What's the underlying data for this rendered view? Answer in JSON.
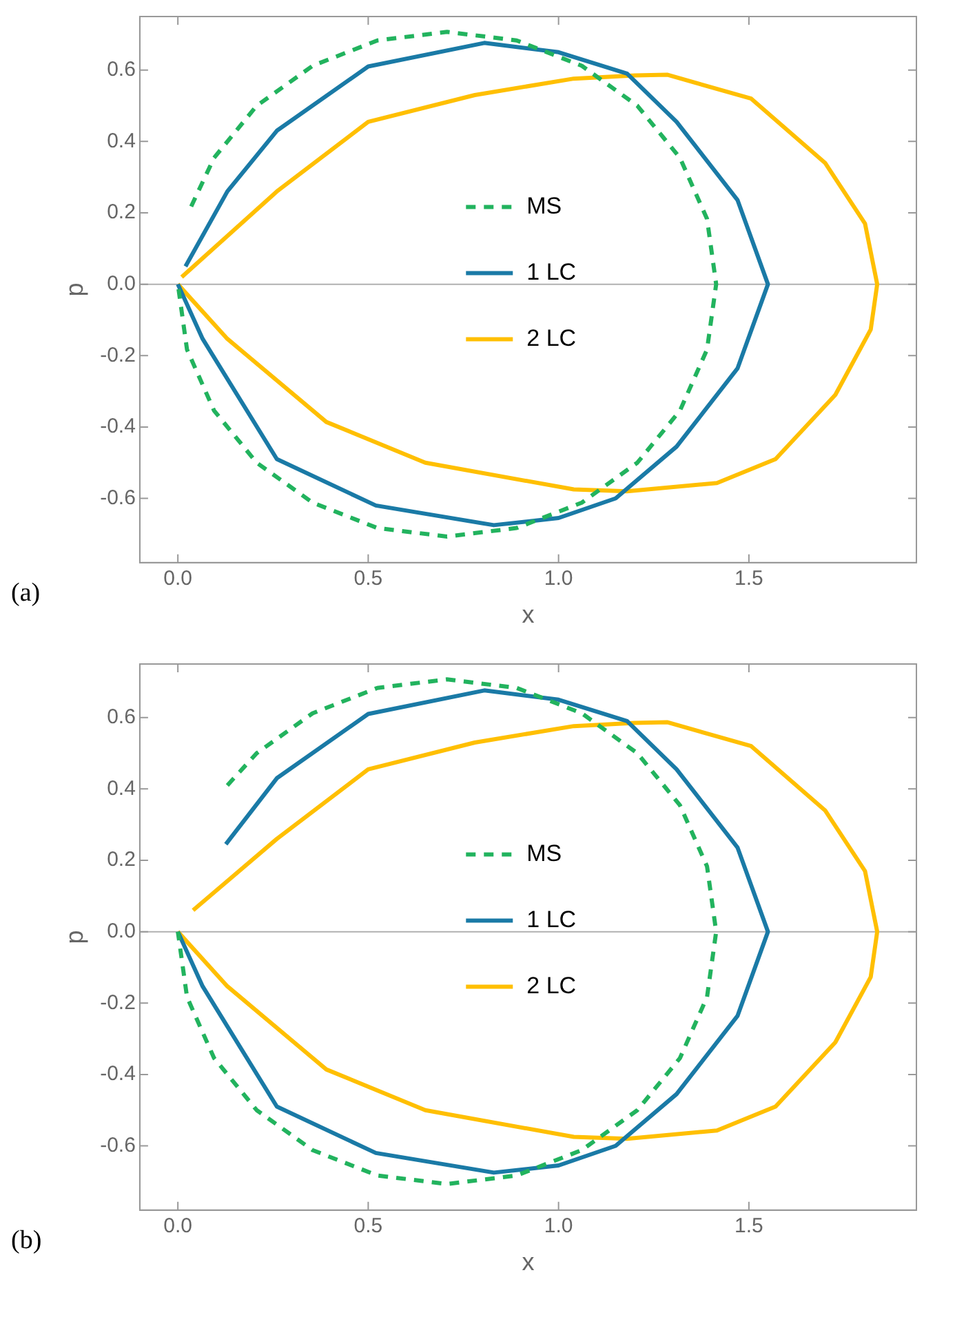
{
  "chart_data": [
    {
      "type": "line",
      "xlabel": "x",
      "ylabel": "p",
      "annotations": [
        "(a)"
      ],
      "legend": "center",
      "grid": false,
      "marker": "none",
      "xlim": [
        -0.1,
        1.94
      ],
      "ylim": [
        -0.78,
        0.75
      ],
      "xticks": [
        {
          "value": 0,
          "label": "0.0"
        },
        {
          "value": 0.5,
          "label": "0.5"
        },
        {
          "value": 1,
          "label": "1.0"
        },
        {
          "value": 1.5,
          "label": "1.5"
        }
      ],
      "yticks": [
        {
          "value": -0.6,
          "label": "-0.6"
        },
        {
          "value": -0.4,
          "label": "-0.4"
        },
        {
          "value": -0.2,
          "label": "-0.2"
        },
        {
          "value": 0,
          "label": "0.0"
        },
        {
          "value": 0.2,
          "label": "0.2"
        },
        {
          "value": 0.4,
          "label": "0.4"
        },
        {
          "value": 0.6,
          "label": "0.6"
        }
      ],
      "ref_lines": [
        {
          "axis": "y",
          "value": 0,
          "color": "#b0b0b0"
        }
      ],
      "series": [
        {
          "name": "MS",
          "color": "#22b35e",
          "line_style": "dashed",
          "x": [
            0.035,
            0.095,
            0.207,
            0.354,
            0.524,
            0.707,
            0.89,
            1.061,
            1.207,
            1.319,
            1.39,
            1.414,
            1.39,
            1.319,
            1.207,
            1.061,
            0.89,
            0.707,
            0.524,
            0.354,
            0.207,
            0.095,
            0.024,
            0
          ],
          "values": [
            0.218,
            0.354,
            0.5,
            0.612,
            0.683,
            0.707,
            0.683,
            0.612,
            0.5,
            0.354,
            0.183,
            0,
            -0.183,
            -0.354,
            -0.5,
            -0.612,
            -0.683,
            -0.707,
            -0.683,
            -0.612,
            -0.5,
            -0.354,
            -0.183,
            0
          ]
        },
        {
          "name": "1 LC",
          "color": "#1a7aa6",
          "line_style": "solid",
          "x": [
            0.02,
            0.13,
            0.26,
            0.5,
            0.805,
            1.0,
            1.18,
            1.31,
            1.47,
            1.55,
            1.47,
            1.31,
            1.15,
            1.0,
            0.83,
            0.52,
            0.26,
            0.065,
            0
          ],
          "values": [
            0.05,
            0.26,
            0.43,
            0.61,
            0.676,
            0.65,
            0.59,
            0.455,
            0.236,
            0,
            -0.236,
            -0.455,
            -0.6,
            -0.655,
            -0.675,
            -0.62,
            -0.49,
            -0.153,
            0
          ]
        },
        {
          "name": "2 LC",
          "color": "#ffbf00",
          "line_style": "solid",
          "x": [
            0.01,
            0.26,
            0.5,
            0.78,
            1.04,
            1.2,
            1.285,
            1.506,
            1.7,
            1.805,
            1.837,
            1.82,
            1.727,
            1.57,
            1.416,
            1.18,
            1.04,
            0.65,
            0.39,
            0.13,
            0
          ],
          "values": [
            0.02,
            0.26,
            0.455,
            0.53,
            0.576,
            0.585,
            0.587,
            0.52,
            0.34,
            0.17,
            0,
            -0.127,
            -0.31,
            -0.49,
            -0.557,
            -0.58,
            -0.575,
            -0.5,
            -0.386,
            -0.153,
            0
          ]
        }
      ]
    },
    {
      "type": "line",
      "xlabel": "x",
      "ylabel": "p",
      "annotations": [
        "(b)"
      ],
      "legend": "center",
      "grid": false,
      "marker": "none",
      "xlim": [
        -0.1,
        1.94
      ],
      "ylim": [
        -0.78,
        0.75
      ],
      "xticks": [
        {
          "value": 0,
          "label": "0.0"
        },
        {
          "value": 0.5,
          "label": "0.5"
        },
        {
          "value": 1,
          "label": "1.0"
        },
        {
          "value": 1.5,
          "label": "1.5"
        }
      ],
      "yticks": [
        {
          "value": -0.6,
          "label": "-0.6"
        },
        {
          "value": -0.4,
          "label": "-0.4"
        },
        {
          "value": -0.2,
          "label": "-0.2"
        },
        {
          "value": 0,
          "label": "0.0"
        },
        {
          "value": 0.2,
          "label": "0.2"
        },
        {
          "value": 0.4,
          "label": "0.4"
        },
        {
          "value": 0.6,
          "label": "0.6"
        }
      ],
      "ref_lines": [
        {
          "axis": "y",
          "value": 0,
          "color": "#b0b0b0"
        }
      ],
      "series": [
        {
          "name": "MS",
          "color": "#22b35e",
          "line_style": "dashed",
          "x": [
            0.13,
            0.207,
            0.354,
            0.524,
            0.707,
            0.89,
            1.061,
            1.207,
            1.319,
            1.39,
            1.414,
            1.39,
            1.319,
            1.207,
            1.061,
            0.89,
            0.707,
            0.524,
            0.354,
            0.207,
            0.095,
            0.024,
            0
          ],
          "values": [
            0.41,
            0.5,
            0.612,
            0.683,
            0.707,
            0.683,
            0.612,
            0.5,
            0.354,
            0.183,
            0,
            -0.183,
            -0.354,
            -0.5,
            -0.612,
            -0.683,
            -0.707,
            -0.683,
            -0.612,
            -0.5,
            -0.354,
            -0.183,
            0
          ]
        },
        {
          "name": "1 LC",
          "color": "#1a7aa6",
          "line_style": "solid",
          "x": [
            0.126,
            0.26,
            0.5,
            0.805,
            1.0,
            1.18,
            1.31,
            1.47,
            1.55,
            1.47,
            1.31,
            1.15,
            1.0,
            0.83,
            0.52,
            0.26,
            0.065,
            0
          ],
          "values": [
            0.245,
            0.43,
            0.61,
            0.676,
            0.65,
            0.59,
            0.455,
            0.236,
            0,
            -0.236,
            -0.455,
            -0.6,
            -0.655,
            -0.675,
            -0.62,
            -0.49,
            -0.153,
            0
          ]
        },
        {
          "name": "2 LC",
          "color": "#ffbf00",
          "line_style": "solid",
          "x": [
            0.04,
            0.26,
            0.5,
            0.78,
            1.04,
            1.2,
            1.285,
            1.506,
            1.7,
            1.805,
            1.837,
            1.82,
            1.727,
            1.57,
            1.416,
            1.18,
            1.04,
            0.65,
            0.39,
            0.13,
            0
          ],
          "values": [
            0.06,
            0.26,
            0.455,
            0.53,
            0.576,
            0.585,
            0.587,
            0.52,
            0.34,
            0.17,
            0,
            -0.127,
            -0.31,
            -0.49,
            -0.557,
            -0.58,
            -0.575,
            -0.5,
            -0.386,
            -0.153,
            0
          ]
        }
      ]
    }
  ]
}
